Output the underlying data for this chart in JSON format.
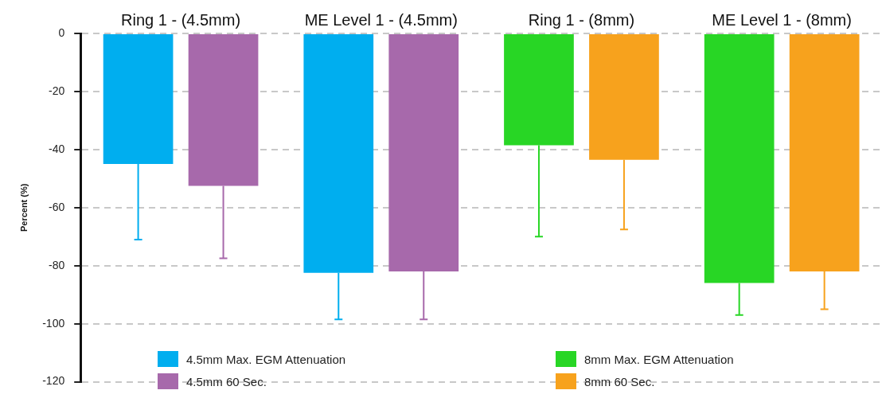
{
  "chart_data": {
    "type": "bar",
    "categories": [
      "Ring 1 - (4.5mm)",
      "ME Level 1 - (4.5mm)",
      "Ring 1 - (8mm)",
      "ME Level 1 - (8mm)"
    ],
    "series": [
      {
        "name": "4.5mm Max. EGM Attenuation",
        "color": "#00aeef",
        "values": [
          -45,
          -82.5,
          null,
          null
        ],
        "errors": [
          [
            -71,
            -45
          ],
          [
            -98.5,
            -82.5
          ],
          null,
          null
        ]
      },
      {
        "name": "4.5mm 60 Sec.",
        "color": "#a769ab",
        "values": [
          -52.5,
          -82,
          null,
          null
        ],
        "errors": [
          [
            -77.5,
            -52.5
          ],
          [
            -98.5,
            -82
          ],
          null,
          null
        ]
      },
      {
        "name": "8mm Max. EGM Attenuation",
        "color": "#28d625",
        "values": [
          null,
          null,
          -38.5,
          -86
        ],
        "errors": [
          null,
          null,
          [
            -70,
            -38.5
          ],
          [
            -97,
            -86
          ]
        ]
      },
      {
        "name": "8mm 60 Sec.",
        "color": "#f7a21d",
        "values": [
          null,
          null,
          -43.5,
          -82
        ],
        "errors": [
          null,
          null,
          [
            -67.5,
            -43.5
          ],
          [
            -95,
            -82
          ]
        ]
      }
    ],
    "ylabel": "Percent (%)",
    "ylim": [
      -120,
      0
    ],
    "yticks": [
      -120,
      -100,
      -80,
      -60,
      -40,
      -20,
      0
    ],
    "grid": "y",
    "legend": "bottom"
  }
}
